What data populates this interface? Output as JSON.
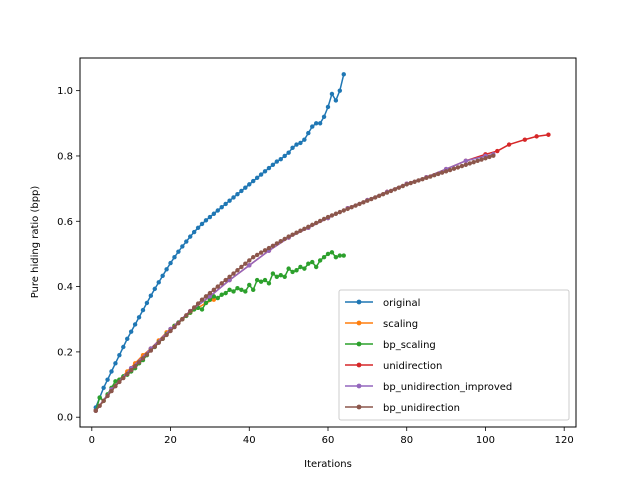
{
  "chart_data": {
    "type": "line",
    "title": "",
    "xlabel": "Iterations",
    "ylabel": "Pure hiding ratio (bpp)",
    "xlim": [
      -3,
      123
    ],
    "ylim": [
      -0.03,
      1.1
    ],
    "xticks": [
      0,
      20,
      40,
      60,
      80,
      100,
      120
    ],
    "yticks": [
      0.0,
      0.2,
      0.4,
      0.6,
      0.8,
      1.0
    ],
    "xtick_labels": [
      "0",
      "20",
      "40",
      "60",
      "80",
      "100",
      "120"
    ],
    "ytick_labels": [
      "0.0",
      "0.2",
      "0.4",
      "0.6",
      "0.8",
      "1.0"
    ],
    "legend_position": "lower right",
    "grid": false,
    "series": [
      {
        "name": "original",
        "color": "#1f77b4",
        "points": [
          [
            1,
            0.03
          ],
          [
            2,
            0.06
          ],
          [
            3,
            0.09
          ],
          [
            4,
            0.115
          ],
          [
            5,
            0.14
          ],
          [
            6,
            0.165
          ],
          [
            7,
            0.19
          ],
          [
            8,
            0.215
          ],
          [
            9,
            0.24
          ],
          [
            10,
            0.262
          ],
          [
            11,
            0.284
          ],
          [
            12,
            0.306
          ],
          [
            13,
            0.328
          ],
          [
            14,
            0.35
          ],
          [
            15,
            0.372
          ],
          [
            16,
            0.393
          ],
          [
            17,
            0.413
          ],
          [
            18,
            0.433
          ],
          [
            19,
            0.453
          ],
          [
            20,
            0.472
          ],
          [
            21,
            0.49
          ],
          [
            22,
            0.507
          ],
          [
            23,
            0.523
          ],
          [
            24,
            0.538
          ],
          [
            25,
            0.553
          ],
          [
            26,
            0.567
          ],
          [
            27,
            0.58
          ],
          [
            28,
            0.592
          ],
          [
            29,
            0.603
          ],
          [
            30,
            0.613
          ],
          [
            31,
            0.623
          ],
          [
            32,
            0.633
          ],
          [
            33,
            0.643
          ],
          [
            34,
            0.653
          ],
          [
            35,
            0.663
          ],
          [
            36,
            0.673
          ],
          [
            37,
            0.683
          ],
          [
            38,
            0.693
          ],
          [
            39,
            0.703
          ],
          [
            40,
            0.713
          ],
          [
            41,
            0.723
          ],
          [
            42,
            0.733
          ],
          [
            43,
            0.743
          ],
          [
            44,
            0.753
          ],
          [
            45,
            0.763
          ],
          [
            46,
            0.773
          ],
          [
            47,
            0.783
          ],
          [
            48,
            0.79
          ],
          [
            49,
            0.8
          ],
          [
            50,
            0.81
          ],
          [
            51,
            0.825
          ],
          [
            52,
            0.835
          ],
          [
            53,
            0.84
          ],
          [
            54,
            0.85
          ],
          [
            55,
            0.87
          ],
          [
            56,
            0.89
          ],
          [
            57,
            0.9
          ],
          [
            58,
            0.9
          ],
          [
            59,
            0.92
          ],
          [
            60,
            0.95
          ],
          [
            61,
            0.99
          ],
          [
            62,
            0.97
          ],
          [
            63,
            1.0
          ],
          [
            64,
            1.05
          ]
        ]
      },
      {
        "name": "scaling",
        "color": "#ff7f0e",
        "points": [
          [
            1,
            0.02
          ],
          [
            3,
            0.05
          ],
          [
            5,
            0.085
          ],
          [
            7,
            0.115
          ],
          [
            9,
            0.14
          ],
          [
            11,
            0.165
          ],
          [
            13,
            0.19
          ],
          [
            15,
            0.21
          ],
          [
            17,
            0.235
          ],
          [
            19,
            0.26
          ],
          [
            21,
            0.28
          ],
          [
            23,
            0.3
          ],
          [
            25,
            0.32
          ],
          [
            27,
            0.335
          ],
          [
            29,
            0.35
          ],
          [
            31,
            0.36
          ]
        ]
      },
      {
        "name": "bp_scaling",
        "color": "#2ca02c",
        "points": [
          [
            1,
            0.02
          ],
          [
            2,
            0.06
          ],
          [
            3,
            0.05
          ],
          [
            4,
            0.07
          ],
          [
            5,
            0.09
          ],
          [
            6,
            0.11
          ],
          [
            7,
            0.115
          ],
          [
            8,
            0.125
          ],
          [
            9,
            0.13
          ],
          [
            10,
            0.14
          ],
          [
            11,
            0.15
          ],
          [
            12,
            0.165
          ],
          [
            13,
            0.175
          ],
          [
            14,
            0.19
          ],
          [
            15,
            0.21
          ],
          [
            16,
            0.215
          ],
          [
            17,
            0.23
          ],
          [
            18,
            0.24
          ],
          [
            19,
            0.255
          ],
          [
            20,
            0.27
          ],
          [
            21,
            0.28
          ],
          [
            22,
            0.29
          ],
          [
            23,
            0.3
          ],
          [
            24,
            0.31
          ],
          [
            25,
            0.32
          ],
          [
            26,
            0.33
          ],
          [
            27,
            0.335
          ],
          [
            28,
            0.33
          ],
          [
            29,
            0.35
          ],
          [
            30,
            0.36
          ],
          [
            31,
            0.37
          ],
          [
            32,
            0.365
          ],
          [
            33,
            0.375
          ],
          [
            34,
            0.38
          ],
          [
            35,
            0.39
          ],
          [
            36,
            0.385
          ],
          [
            37,
            0.395
          ],
          [
            38,
            0.39
          ],
          [
            39,
            0.385
          ],
          [
            40,
            0.405
          ],
          [
            41,
            0.39
          ],
          [
            42,
            0.42
          ],
          [
            43,
            0.415
          ],
          [
            44,
            0.42
          ],
          [
            45,
            0.41
          ],
          [
            46,
            0.44
          ],
          [
            47,
            0.43
          ],
          [
            48,
            0.435
          ],
          [
            49,
            0.43
          ],
          [
            50,
            0.455
          ],
          [
            51,
            0.445
          ],
          [
            52,
            0.45
          ],
          [
            53,
            0.46
          ],
          [
            54,
            0.455
          ],
          [
            55,
            0.47
          ],
          [
            56,
            0.475
          ],
          [
            57,
            0.46
          ],
          [
            58,
            0.48
          ],
          [
            59,
            0.49
          ],
          [
            60,
            0.5
          ],
          [
            61,
            0.505
          ],
          [
            62,
            0.49
          ],
          [
            63,
            0.495
          ],
          [
            64,
            0.495
          ]
        ]
      },
      {
        "name": "unidirection",
        "color": "#d62728",
        "points": [
          [
            1,
            0.02
          ],
          [
            5,
            0.085
          ],
          [
            10,
            0.15
          ],
          [
            15,
            0.21
          ],
          [
            20,
            0.27
          ],
          [
            25,
            0.325
          ],
          [
            30,
            0.37
          ],
          [
            35,
            0.42
          ],
          [
            40,
            0.465
          ],
          [
            45,
            0.51
          ],
          [
            50,
            0.55
          ],
          [
            55,
            0.58
          ],
          [
            60,
            0.61
          ],
          [
            65,
            0.64
          ],
          [
            70,
            0.665
          ],
          [
            75,
            0.69
          ],
          [
            80,
            0.715
          ],
          [
            85,
            0.735
          ],
          [
            90,
            0.76
          ],
          [
            95,
            0.785
          ],
          [
            100,
            0.805
          ],
          [
            103,
            0.815
          ],
          [
            106,
            0.835
          ],
          [
            110,
            0.85
          ],
          [
            113,
            0.86
          ],
          [
            116,
            0.865
          ]
        ]
      },
      {
        "name": "bp_unidirection_improved",
        "color": "#9467bd",
        "points": [
          [
            1,
            0.02
          ],
          [
            5,
            0.085
          ],
          [
            10,
            0.15
          ],
          [
            15,
            0.21
          ],
          [
            20,
            0.27
          ],
          [
            25,
            0.325
          ],
          [
            30,
            0.37
          ],
          [
            35,
            0.42
          ],
          [
            40,
            0.465
          ],
          [
            45,
            0.51
          ],
          [
            50,
            0.55
          ],
          [
            55,
            0.58
          ],
          [
            60,
            0.61
          ],
          [
            65,
            0.64
          ],
          [
            70,
            0.665
          ],
          [
            75,
            0.69
          ],
          [
            80,
            0.715
          ],
          [
            85,
            0.735
          ],
          [
            90,
            0.76
          ],
          [
            95,
            0.785
          ],
          [
            100,
            0.8
          ],
          [
            102,
            0.805
          ]
        ]
      },
      {
        "name": "bp_unidirection",
        "color": "#8c564b",
        "points": [
          [
            1,
            0.02
          ],
          [
            2,
            0.035
          ],
          [
            3,
            0.05
          ],
          [
            4,
            0.065
          ],
          [
            5,
            0.08
          ],
          [
            6,
            0.095
          ],
          [
            7,
            0.108
          ],
          [
            8,
            0.12
          ],
          [
            9,
            0.132
          ],
          [
            10,
            0.144
          ],
          [
            11,
            0.156
          ],
          [
            12,
            0.168
          ],
          [
            13,
            0.18
          ],
          [
            14,
            0.192
          ],
          [
            15,
            0.204
          ],
          [
            16,
            0.216
          ],
          [
            17,
            0.228
          ],
          [
            18,
            0.24
          ],
          [
            19,
            0.252
          ],
          [
            20,
            0.264
          ],
          [
            21,
            0.276
          ],
          [
            22,
            0.288
          ],
          [
            23,
            0.3
          ],
          [
            24,
            0.312
          ],
          [
            25,
            0.324
          ],
          [
            26,
            0.336
          ],
          [
            27,
            0.348
          ],
          [
            28,
            0.36
          ],
          [
            29,
            0.37
          ],
          [
            30,
            0.38
          ],
          [
            31,
            0.39
          ],
          [
            32,
            0.4
          ],
          [
            33,
            0.41
          ],
          [
            34,
            0.42
          ],
          [
            35,
            0.43
          ],
          [
            36,
            0.44
          ],
          [
            37,
            0.45
          ],
          [
            38,
            0.46
          ],
          [
            39,
            0.47
          ],
          [
            40,
            0.48
          ],
          [
            41,
            0.49
          ],
          [
            42,
            0.497
          ],
          [
            43,
            0.504
          ],
          [
            44,
            0.511
          ],
          [
            45,
            0.518
          ],
          [
            46,
            0.525
          ],
          [
            47,
            0.532
          ],
          [
            48,
            0.539
          ],
          [
            49,
            0.546
          ],
          [
            50,
            0.553
          ],
          [
            51,
            0.559
          ],
          [
            52,
            0.565
          ],
          [
            53,
            0.571
          ],
          [
            54,
            0.577
          ],
          [
            55,
            0.583
          ],
          [
            56,
            0.589
          ],
          [
            57,
            0.595
          ],
          [
            58,
            0.601
          ],
          [
            59,
            0.607
          ],
          [
            60,
            0.613
          ],
          [
            61,
            0.618
          ],
          [
            62,
            0.623
          ],
          [
            63,
            0.628
          ],
          [
            64,
            0.633
          ],
          [
            65,
            0.638
          ],
          [
            66,
            0.643
          ],
          [
            67,
            0.648
          ],
          [
            68,
            0.653
          ],
          [
            69,
            0.658
          ],
          [
            70,
            0.663
          ],
          [
            71,
            0.668
          ],
          [
            72,
            0.673
          ],
          [
            73,
            0.678
          ],
          [
            74,
            0.683
          ],
          [
            75,
            0.688
          ],
          [
            76,
            0.693
          ],
          [
            77,
            0.698
          ],
          [
            78,
            0.703
          ],
          [
            79,
            0.708
          ],
          [
            80,
            0.713
          ],
          [
            81,
            0.717
          ],
          [
            82,
            0.721
          ],
          [
            83,
            0.725
          ],
          [
            84,
            0.729
          ],
          [
            85,
            0.733
          ],
          [
            86,
            0.737
          ],
          [
            87,
            0.741
          ],
          [
            88,
            0.745
          ],
          [
            89,
            0.749
          ],
          [
            90,
            0.753
          ],
          [
            91,
            0.757
          ],
          [
            92,
            0.761
          ],
          [
            93,
            0.765
          ],
          [
            94,
            0.769
          ],
          [
            95,
            0.773
          ],
          [
            96,
            0.777
          ],
          [
            97,
            0.781
          ],
          [
            98,
            0.785
          ],
          [
            99,
            0.789
          ],
          [
            100,
            0.793
          ],
          [
            101,
            0.797
          ],
          [
            102,
            0.801
          ]
        ]
      }
    ]
  }
}
